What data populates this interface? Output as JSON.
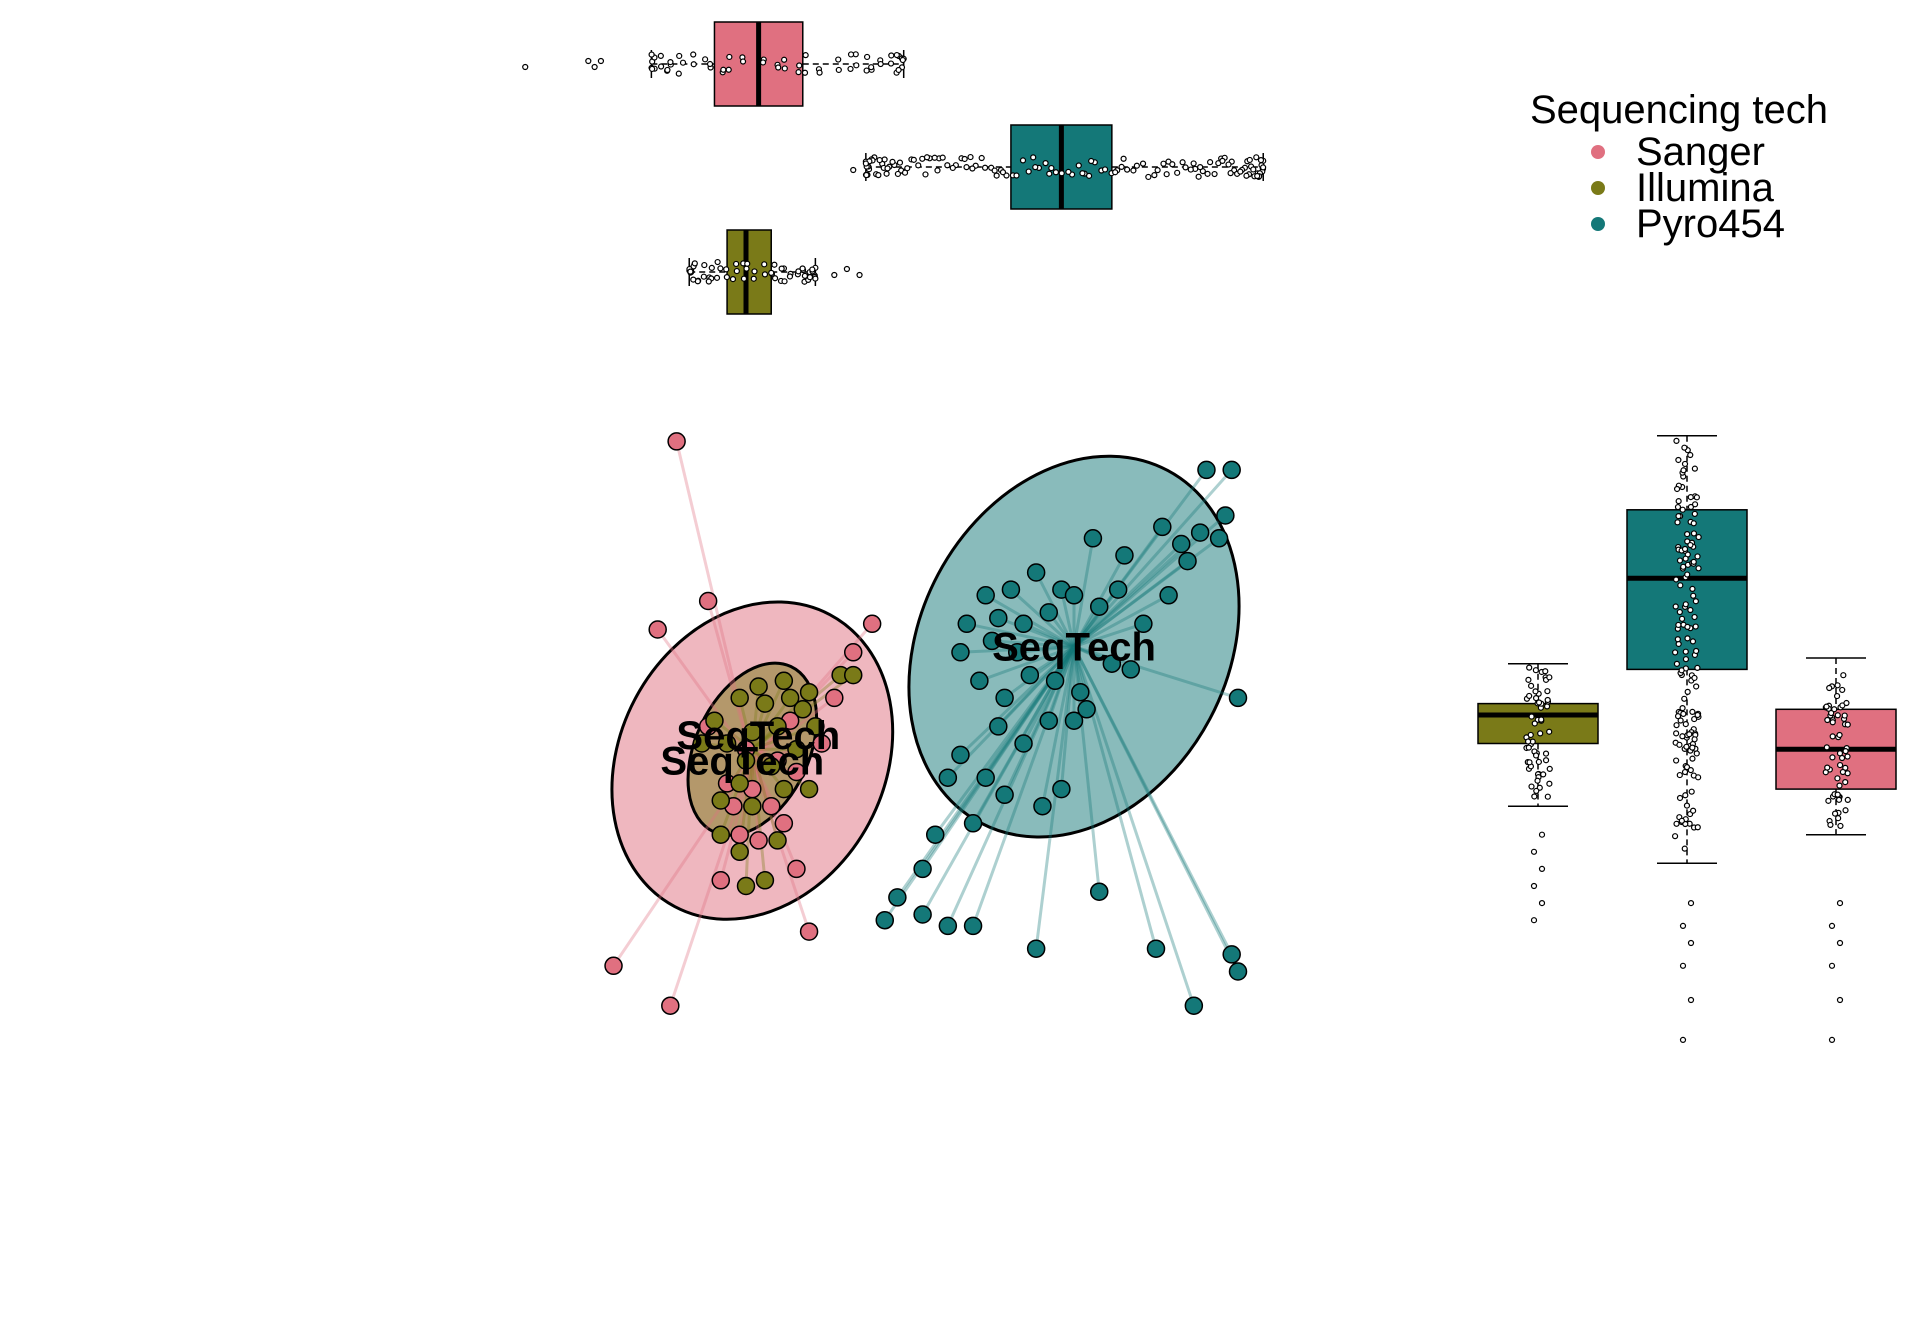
{
  "chart_data": {
    "type": "scatter",
    "title": "",
    "xlabel": "",
    "ylabel": "",
    "axes_visible": false,
    "grid": false,
    "legend": {
      "title": "Sequencing tech",
      "placement": "top-right",
      "entries": [
        {
          "name": "Sanger",
          "color": "#e07080"
        },
        {
          "name": "Illumina",
          "color": "#7a7a18"
        },
        {
          "name": "Pyro454",
          "color": "#147878"
        }
      ]
    },
    "centroid_label": "SeqTech",
    "xlim": [
      -3.5,
      3.0
    ],
    "ylim": [
      -3.0,
      2.0
    ],
    "series": [
      {
        "name": "Sanger",
        "color": "#e07080",
        "centroid": [
          -1.5,
          -0.9
        ],
        "ellipse": {
          "rx": 1.05,
          "ry": 1.45,
          "angle_deg": 28
        },
        "points": [
          [
            -2.1,
            1.9
          ],
          [
            -2.25,
            0.25
          ],
          [
            -1.85,
            0.5
          ],
          [
            -0.55,
            0.3
          ],
          [
            -0.7,
            0.05
          ],
          [
            -0.85,
            -0.35
          ],
          [
            -1.55,
            -0.8
          ],
          [
            -1.3,
            -0.9
          ],
          [
            -1.15,
            -1.0
          ],
          [
            -1.7,
            -1.1
          ],
          [
            -1.5,
            -1.15
          ],
          [
            -1.35,
            -1.3
          ],
          [
            -1.65,
            -1.3
          ],
          [
            -1.25,
            -1.45
          ],
          [
            -1.45,
            -1.6
          ],
          [
            -1.15,
            -1.85
          ],
          [
            -1.75,
            -1.95
          ],
          [
            -2.15,
            -3.05
          ],
          [
            -2.6,
            -2.7
          ],
          [
            -1.05,
            -2.4
          ],
          [
            -1.6,
            -1.55
          ],
          [
            -1.85,
            -0.6
          ],
          [
            -1.2,
            -0.55
          ],
          [
            -0.95,
            -0.75
          ]
        ]
      },
      {
        "name": "Illumina",
        "color": "#7a7a18",
        "centroid": [
          -1.5,
          -0.8
        ],
        "ellipse": {
          "rx": 0.45,
          "ry": 0.8,
          "angle_deg": 25
        },
        "points": [
          [
            -1.8,
            -0.55
          ],
          [
            -1.6,
            -0.35
          ],
          [
            -1.4,
            -0.4
          ],
          [
            -1.2,
            -0.35
          ],
          [
            -1.1,
            -0.45
          ],
          [
            -1.3,
            -0.6
          ],
          [
            -1.5,
            -0.65
          ],
          [
            -1.7,
            -0.75
          ],
          [
            -1.9,
            -0.75
          ],
          [
            -1.55,
            -0.9
          ],
          [
            -1.35,
            -0.95
          ],
          [
            -1.15,
            -0.8
          ],
          [
            -1.0,
            -0.6
          ],
          [
            -0.8,
            -0.15
          ],
          [
            -0.7,
            -0.15
          ],
          [
            -1.45,
            -0.25
          ],
          [
            -1.25,
            -0.2
          ],
          [
            -1.05,
            -0.3
          ],
          [
            -1.6,
            -1.1
          ],
          [
            -1.75,
            -1.25
          ],
          [
            -1.5,
            -1.3
          ],
          [
            -1.25,
            -1.15
          ],
          [
            -1.05,
            -1.15
          ],
          [
            -1.75,
            -1.55
          ],
          [
            -1.6,
            -1.7
          ],
          [
            -1.4,
            -1.95
          ],
          [
            -1.55,
            -2.0
          ],
          [
            -1.3,
            -1.6
          ]
        ]
      },
      {
        "name": "Pyro454",
        "color": "#147878",
        "centroid": [
          1.05,
          0.1
        ],
        "ellipse": {
          "rx": 1.22,
          "ry": 1.75,
          "angle_deg": 28
        },
        "points": [
          [
            2.1,
            1.65
          ],
          [
            2.3,
            1.65
          ],
          [
            2.25,
            1.25
          ],
          [
            2.05,
            1.1
          ],
          [
            1.9,
            1.0
          ],
          [
            1.75,
            1.15
          ],
          [
            2.2,
            1.05
          ],
          [
            1.95,
            0.85
          ],
          [
            1.45,
            0.9
          ],
          [
            1.2,
            1.05
          ],
          [
            0.95,
            0.6
          ],
          [
            0.75,
            0.75
          ],
          [
            0.55,
            0.6
          ],
          [
            0.35,
            0.55
          ],
          [
            0.2,
            0.3
          ],
          [
            0.45,
            0.35
          ],
          [
            0.65,
            0.3
          ],
          [
            0.85,
            0.4
          ],
          [
            1.05,
            0.55
          ],
          [
            1.25,
            0.45
          ],
          [
            1.4,
            0.6
          ],
          [
            1.6,
            0.3
          ],
          [
            1.8,
            0.55
          ],
          [
            0.3,
            -0.2
          ],
          [
            0.5,
            -0.35
          ],
          [
            0.7,
            -0.15
          ],
          [
            0.9,
            -0.2
          ],
          [
            1.1,
            -0.3
          ],
          [
            1.35,
            -0.05
          ],
          [
            1.5,
            -0.1
          ],
          [
            0.45,
            -0.6
          ],
          [
            0.65,
            -0.75
          ],
          [
            0.85,
            -0.55
          ],
          [
            1.05,
            -0.55
          ],
          [
            0.15,
            -0.85
          ],
          [
            0.05,
            -1.05
          ],
          [
            0.35,
            -1.05
          ],
          [
            0.5,
            -1.2
          ],
          [
            0.8,
            -1.3
          ],
          [
            0.25,
            -1.45
          ],
          [
            0.95,
            -1.15
          ],
          [
            -0.05,
            -1.55
          ],
          [
            -0.15,
            -1.85
          ],
          [
            -0.35,
            -2.1
          ],
          [
            -0.45,
            -2.3
          ],
          [
            -0.15,
            -2.25
          ],
          [
            0.05,
            -2.35
          ],
          [
            0.25,
            -2.35
          ],
          [
            0.75,
            -2.55
          ],
          [
            1.25,
            -2.05
          ],
          [
            1.7,
            -2.55
          ],
          [
            2.3,
            -2.6
          ],
          [
            2.35,
            -2.75
          ],
          [
            2.0,
            -3.05
          ],
          [
            2.35,
            -0.35
          ],
          [
            1.15,
            -0.45
          ],
          [
            0.6,
            0.05
          ],
          [
            0.4,
            0.15
          ],
          [
            0.15,
            0.05
          ]
        ]
      }
    ],
    "marginal_boxplots": {
      "top": [
        {
          "name": "Sanger",
          "q1": -1.8,
          "median": -1.45,
          "q3": -1.1,
          "whisker_low": -2.3,
          "whisker_high": -0.3,
          "outliers": [
            -3.3,
            -2.8,
            -2.75,
            -2.7
          ]
        },
        {
          "name": "Pyro454",
          "q1": 0.55,
          "median": 0.95,
          "q3": 1.35,
          "whisker_low": -0.6,
          "whisker_high": 2.55,
          "outliers": [
            -0.7
          ]
        },
        {
          "name": "Illumina",
          "q1": -1.7,
          "median": -1.55,
          "q3": -1.35,
          "whisker_low": -2.0,
          "whisker_high": -1.0,
          "outliers": [
            -0.85,
            -0.75,
            -0.65
          ]
        }
      ],
      "right": [
        {
          "name": "Illumina",
          "q1": -0.75,
          "median": -0.5,
          "q3": -0.4,
          "whisker_low": -1.3,
          "whisker_high": -0.05,
          "outliers": [
            -1.55,
            -1.7,
            -1.85,
            -2.0,
            -2.15,
            -2.3
          ]
        },
        {
          "name": "Pyro454",
          "q1": -0.1,
          "median": 0.7,
          "q3": 1.3,
          "whisker_low": -1.8,
          "whisker_high": 1.95,
          "outliers": [
            -2.15,
            -2.35,
            -2.5,
            -2.7,
            -3.0,
            -3.35
          ]
        },
        {
          "name": "Sanger",
          "q1": -1.15,
          "median": -0.8,
          "q3": -0.45,
          "whisker_low": -1.55,
          "whisker_high": 0.0,
          "outliers": [
            -2.15,
            -2.35,
            -2.5,
            -2.7,
            -3.0,
            -3.35
          ]
        }
      ]
    }
  }
}
